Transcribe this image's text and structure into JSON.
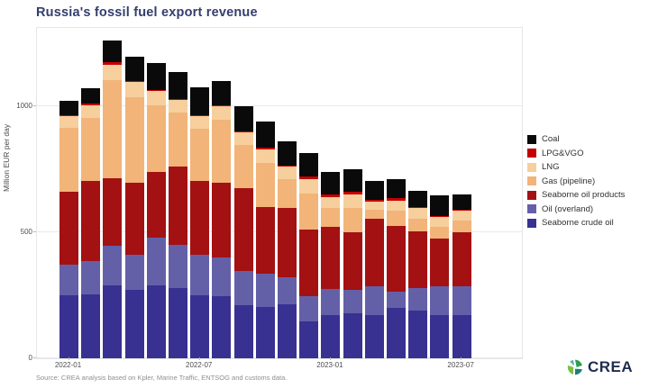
{
  "title": "Russia's fossil fuel export revenue",
  "source_note": "Source: CREA analysis based on Kpler, Marine Traffic, ENTSOG and customs data.",
  "logo": {
    "text": "CREA"
  },
  "y_axis": {
    "label": "Million EUR per day",
    "ticks": [
      0,
      500,
      1000
    ]
  },
  "x_axis": {
    "tick_labels": [
      "2022-01",
      "2022-07",
      "2023-01",
      "2023-07"
    ],
    "tick_positions": [
      0,
      6,
      12,
      18
    ]
  },
  "chart_data": {
    "type": "bar",
    "stacked": true,
    "title": "Russia's fossil fuel export revenue",
    "ylabel": "Million EUR per day",
    "ylim": [
      0,
      1310
    ],
    "grid": "horizontal-major",
    "legend_position": "right",
    "legend_order_top_to_bottom": [
      "Coal",
      "LPG&VGO",
      "LNG",
      "Gas (pipeline)",
      "Seaborne oil products",
      "Oil (overland)",
      "Seaborne crude oil"
    ],
    "categories": [
      "2022-01",
      "2022-02",
      "2022-03",
      "2022-04",
      "2022-05",
      "2022-06",
      "2022-07",
      "2022-08",
      "2022-09",
      "2022-10",
      "2022-11",
      "2022-12",
      "2023-01",
      "2023-02",
      "2023-03",
      "2023-04",
      "2023-05",
      "2023-06",
      "2023-07"
    ],
    "series": [
      {
        "name": "Seaborne crude oil",
        "color": "#393191",
        "values": [
          250,
          255,
          290,
          270,
          290,
          280,
          250,
          245,
          210,
          205,
          215,
          145,
          170,
          180,
          170,
          200,
          190,
          170,
          170
        ]
      },
      {
        "name": "Oil (overland)",
        "color": "#6460a8",
        "values": [
          120,
          130,
          155,
          140,
          190,
          170,
          160,
          155,
          135,
          130,
          105,
          100,
          105,
          90,
          115,
          65,
          90,
          115,
          115
        ]
      },
      {
        "name": "Seaborne oil products",
        "color": "#a31113",
        "values": [
          290,
          320,
          270,
          285,
          260,
          310,
          295,
          295,
          330,
          265,
          275,
          265,
          245,
          230,
          270,
          260,
          225,
          190,
          215
        ]
      },
      {
        "name": "Gas (pipeline)",
        "color": "#f2b478",
        "values": [
          255,
          250,
          390,
          340,
          265,
          215,
          205,
          250,
          170,
          175,
          115,
          145,
          75,
          95,
          35,
          60,
          50,
          45,
          45
        ]
      },
      {
        "name": "LNG",
        "color": "#f6cf9d",
        "values": [
          45,
          50,
          60,
          60,
          55,
          50,
          50,
          55,
          50,
          55,
          50,
          55,
          45,
          55,
          30,
          40,
          40,
          40,
          40
        ]
      },
      {
        "name": "LPG&VGO",
        "color": "#c40000",
        "values": [
          5,
          5,
          10,
          5,
          5,
          5,
          5,
          5,
          5,
          5,
          5,
          10,
          10,
          10,
          10,
          10,
          5,
          5,
          5
        ]
      },
      {
        "name": "Coal",
        "color": "#0a0a0a",
        "values": [
          55,
          60,
          85,
          95,
          105,
          105,
          110,
          95,
          100,
          105,
          95,
          95,
          90,
          90,
          75,
          75,
          65,
          80,
          60
        ]
      }
    ],
    "totals": [
      1020,
      1070,
      1260,
      1195,
      1170,
      1135,
      1075,
      1100,
      1000,
      940,
      860,
      815,
      740,
      750,
      705,
      710,
      665,
      645,
      650
    ]
  },
  "layout_colors": {
    "title": "#333e6e",
    "gridline": "#e9e9e9",
    "axis_text": "#4d4d4d",
    "source_text": "#8f8f8f",
    "logo_navy": "#1f2c50",
    "logo_greens": [
      "#7ac143",
      "#2e9e4f",
      "#1b7f79",
      "#4ab5ab"
    ]
  }
}
